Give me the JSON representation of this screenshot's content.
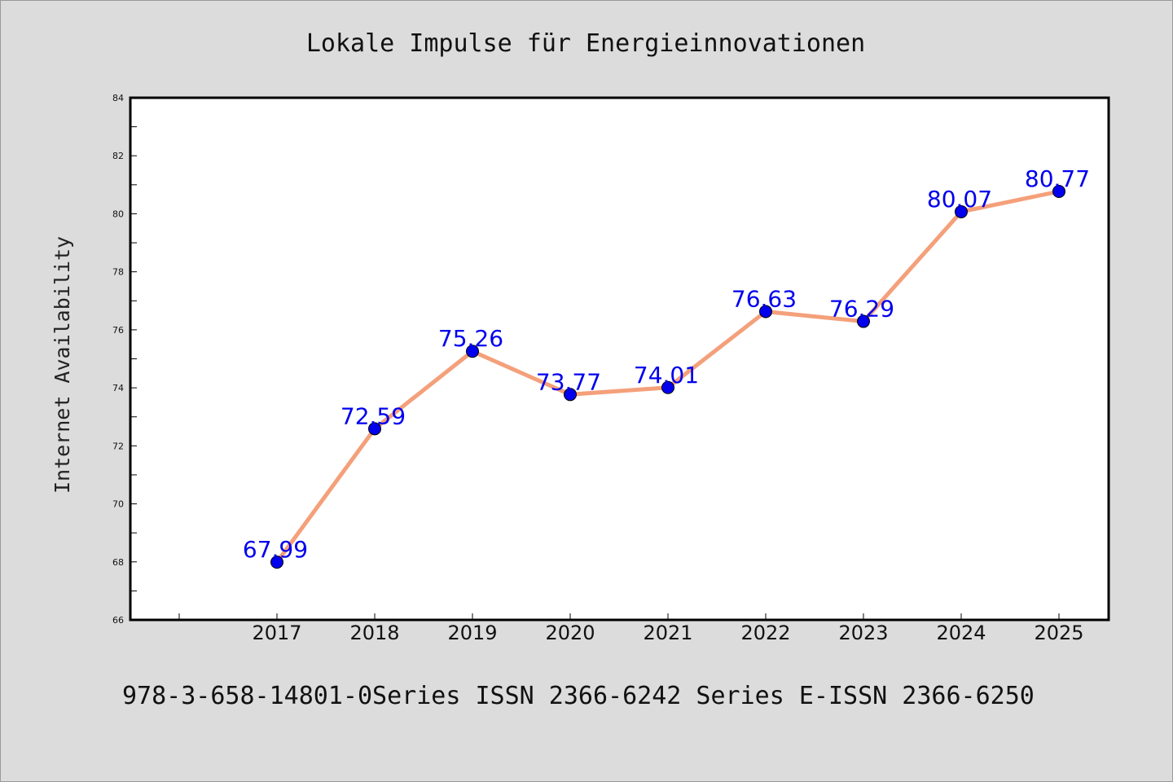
{
  "chart_data": {
    "type": "line",
    "title": "Lokale Impulse für Energieinnovationen",
    "xlabel": "",
    "ylabel": "Internet Availability",
    "categories": [
      "2017",
      "2018",
      "2019",
      "2020",
      "2021",
      "2022",
      "2023",
      "2024",
      "2025"
    ],
    "series": [
      {
        "values": [
          67.99,
          72.59,
          75.26,
          73.77,
          74.01,
          76.63,
          76.29,
          80.07,
          80.77
        ],
        "labels": [
          "67.99",
          "72.59",
          "75.26",
          "73.77",
          "74.01",
          "76.63",
          "76.29",
          "80.07",
          "80.77"
        ],
        "line_color": "#f4a07a",
        "marker_color": "#0000ee"
      }
    ],
    "ylim": [
      66,
      84
    ],
    "yticks": [
      66,
      68,
      70,
      72,
      74,
      76,
      78,
      80,
      82,
      84
    ],
    "ytick_labels": [
      "66",
      "68",
      "70",
      "72",
      "74",
      "76",
      "78",
      "80",
      "82",
      "84"
    ],
    "grid": false,
    "legend": "none"
  },
  "footer_text": "978-3-658-14801-0Series ISSN 2366-6242 Series E-ISSN 2366-6250",
  "colors": {
    "background": "#dcdcdc",
    "plot_background": "#ffffff",
    "label_color": "#0000ee"
  }
}
